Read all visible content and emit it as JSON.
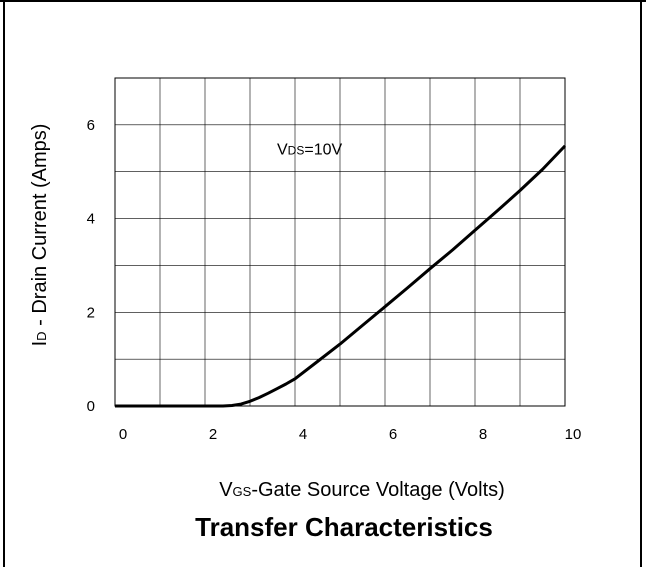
{
  "chart_data": {
    "type": "line",
    "title": "Transfer Characteristics",
    "xlabel": {
      "main": "V",
      "sub": "GS",
      "rest": "-Gate Source Voltage (Volts)"
    },
    "ylabel": {
      "main": "I",
      "sub": "D",
      "rest": " - Drain Current (Amps)"
    },
    "annotation": {
      "main": "V",
      "sub": "DS",
      "rest": "=10V",
      "x": 3.6,
      "y": 5.3
    },
    "xlim": [
      0,
      10
    ],
    "ylim": [
      0,
      7
    ],
    "x_ticks": [
      0,
      2,
      4,
      6,
      8,
      10
    ],
    "y_ticks": [
      0,
      2,
      4,
      6
    ],
    "x_grid": [
      0,
      1,
      2,
      3,
      4,
      5,
      6,
      7,
      8,
      9,
      10
    ],
    "y_grid": [
      0,
      1,
      2,
      3,
      4,
      5,
      6,
      7
    ],
    "grid": true,
    "series": [
      {
        "x": [
          0,
          2.4,
          2.6,
          2.8,
          3.0,
          3.2,
          3.4,
          3.6,
          3.8,
          4.0,
          4.5,
          5.0,
          5.5,
          6.0,
          6.5,
          7.0,
          7.5,
          8.0,
          8.5,
          9.0,
          9.5,
          10.0
        ],
        "y": [
          0,
          0,
          0.01,
          0.04,
          0.1,
          0.18,
          0.27,
          0.37,
          0.47,
          0.58,
          0.95,
          1.32,
          1.72,
          2.12,
          2.52,
          2.93,
          3.33,
          3.75,
          4.17,
          4.6,
          5.05,
          5.55
        ],
        "color": "#000000"
      }
    ]
  }
}
